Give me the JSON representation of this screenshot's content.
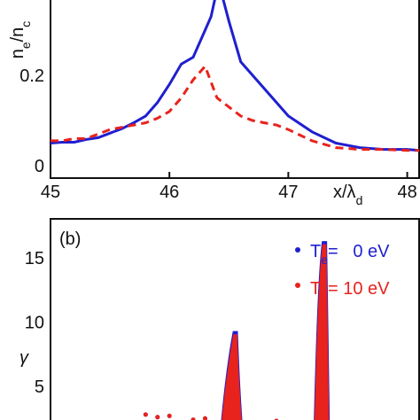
{
  "chart_data": [
    {
      "panel": "a",
      "type": "line",
      "ylabel": "n_e/n_c",
      "xlabel": "x/λ_d",
      "xlim": [
        45,
        48.1
      ],
      "ylim": [
        0,
        0.4
      ],
      "xticks": [
        "45",
        "46",
        "47",
        "48"
      ],
      "xtick_values": [
        45,
        46,
        47,
        48
      ],
      "yticks": [
        "0",
        "0.2"
      ],
      "ytick_values": [
        0,
        0.2
      ],
      "series": [
        {
          "color": "#1f1fd0",
          "style": "solid",
          "x": [
            45.0,
            45.1,
            45.2,
            45.3,
            45.4,
            45.5,
            45.6,
            45.7,
            45.8,
            45.9,
            46.0,
            46.1,
            46.2,
            46.3,
            46.35,
            46.4,
            46.45,
            46.5,
            46.6,
            46.7,
            46.8,
            46.9,
            47.0,
            47.2,
            47.4,
            47.6,
            47.8,
            48.0,
            48.1
          ],
          "y": [
            0.05,
            0.052,
            0.052,
            0.058,
            0.062,
            0.072,
            0.082,
            0.095,
            0.11,
            0.14,
            0.18,
            0.225,
            0.24,
            0.3,
            0.33,
            0.39,
            0.37,
            0.32,
            0.23,
            0.2,
            0.17,
            0.14,
            0.11,
            0.075,
            0.05,
            0.04,
            0.036,
            0.036,
            0.034
          ]
        },
        {
          "color": "#e8221c",
          "style": "dashed",
          "x": [
            45.0,
            45.1,
            45.2,
            45.3,
            45.4,
            45.5,
            45.6,
            45.7,
            45.8,
            45.9,
            46.0,
            46.1,
            46.2,
            46.3,
            46.4,
            46.5,
            46.6,
            46.7,
            46.8,
            46.9,
            47.0,
            47.2,
            47.4,
            47.6,
            47.8,
            48.0,
            48.1
          ],
          "y": [
            0.055,
            0.055,
            0.06,
            0.06,
            0.07,
            0.08,
            0.085,
            0.09,
            0.095,
            0.105,
            0.12,
            0.15,
            0.19,
            0.22,
            0.15,
            0.13,
            0.11,
            0.1,
            0.095,
            0.09,
            0.08,
            0.055,
            0.04,
            0.036,
            0.036,
            0.034,
            0.034
          ]
        }
      ]
    },
    {
      "panel": "b",
      "type": "scatter",
      "panel_label": "(b)",
      "ylabel": "γ",
      "xlim": [
        45,
        48.1
      ],
      "ylim": [
        1,
        18
      ],
      "yticks": [
        "5",
        "10",
        "15"
      ],
      "ytick_values": [
        5,
        10,
        15
      ],
      "legend_position": "top-right",
      "series": [
        {
          "name_main": "T",
          "name_sub": "e",
          "name_rest": "=   0 eV",
          "color": "#1f1fd0",
          "spikes": [
            {
              "x": 46.55,
              "peak": 9.2
            },
            {
              "x": 47.3,
              "peak": 16.2
            }
          ]
        },
        {
          "name_main": "T",
          "name_sub": "e",
          "name_rest": "= 10 eV",
          "color": "#e8221c",
          "spikes": [
            {
              "x": 46.55,
              "peak": 9.0
            },
            {
              "x": 47.3,
              "peak": 16.0
            }
          ]
        }
      ]
    }
  ],
  "colors": {
    "blue": "#1f1fd0",
    "red": "#e8221c"
  }
}
